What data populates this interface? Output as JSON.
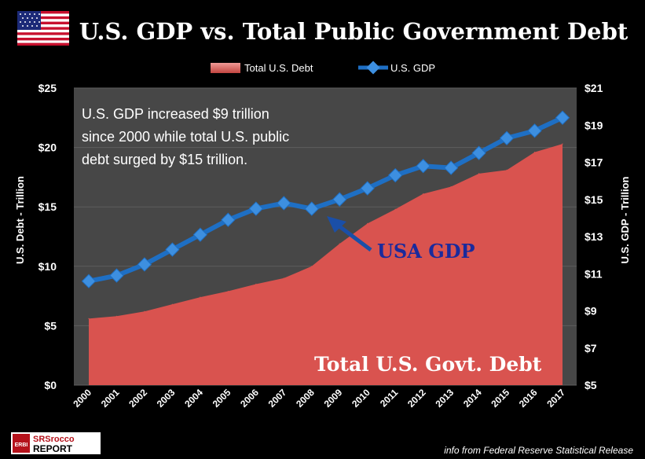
{
  "title": "U.S. GDP vs. Total Public Government Debt",
  "annotation": {
    "line1": "U.S. GDP increased $9 trillion",
    "line2": "since 2000 while total U.S. public",
    "line3": "debt surged by $15 trillion."
  },
  "callout_gdp": "USA GDP",
  "callout_debt": "Total U.S. Govt. Debt",
  "logo": {
    "badge": "ERBI",
    "top": "SRSrocco",
    "bottom": "REPORT"
  },
  "source": "info from Federal Reserve Statistical Release",
  "colors": {
    "background": "#000000",
    "plot_background": "#474747",
    "debt_fill": "#d9534f",
    "gdp_line": "#1e6fc4",
    "gdp_marker": "#3d8fe0",
    "callout_gdp_text": "#1a2a9c",
    "text": "#ffffff"
  },
  "chart_data": {
    "type": "area+line",
    "categories": [
      "2000",
      "2001",
      "2002",
      "2003",
      "2004",
      "2005",
      "2006",
      "2007",
      "2008",
      "2009",
      "2010",
      "2011",
      "2012",
      "2013",
      "2014",
      "2015",
      "2016",
      "2017"
    ],
    "series": [
      {
        "name": "Total U.S. Debt",
        "type": "area",
        "axis": "left",
        "values": [
          5.6,
          5.8,
          6.2,
          6.8,
          7.4,
          7.9,
          8.5,
          9.0,
          10.0,
          11.9,
          13.6,
          14.8,
          16.1,
          16.7,
          17.8,
          18.1,
          19.6,
          20.3
        ]
      },
      {
        "name": "U.S. GDP",
        "type": "line",
        "axis": "right",
        "values": [
          10.6,
          10.9,
          11.5,
          12.3,
          13.1,
          13.9,
          14.5,
          14.8,
          14.5,
          15.0,
          15.6,
          16.3,
          16.8,
          16.7,
          17.5,
          18.3,
          18.7,
          19.4
        ]
      }
    ],
    "left_axis": {
      "label": "U.S. Debt -  Trillion",
      "min": 0,
      "max": 25,
      "ticks": [
        "$0",
        "$5",
        "$10",
        "$15",
        "$20",
        "$25"
      ]
    },
    "right_axis": {
      "label": "U.S. GDP -  Trillion",
      "min": 5,
      "max": 21,
      "ticks": [
        "$5",
        "$7",
        "$9",
        "$11",
        "$13",
        "$15",
        "$17",
        "$19",
        "$21"
      ]
    },
    "legend": {
      "placement": "top",
      "entries": [
        "Total U.S. Debt",
        "U.S. GDP"
      ]
    },
    "grid": true
  }
}
